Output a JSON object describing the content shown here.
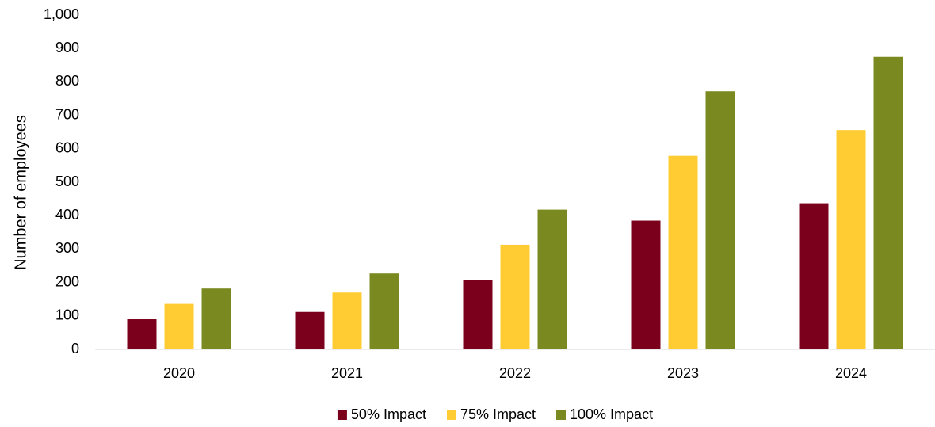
{
  "chart_data": {
    "type": "bar",
    "title": "",
    "xlabel": "",
    "ylabel": "Number of employees",
    "categories": [
      "2020",
      "2021",
      "2022",
      "2023",
      "2024"
    ],
    "series": [
      {
        "name": "50% Impact",
        "color": "#7B001C",
        "values": [
          90,
          112,
          208,
          385,
          437
        ]
      },
      {
        "name": "75% Impact",
        "color": "#FFCC33",
        "values": [
          136,
          170,
          313,
          579,
          656
        ]
      },
      {
        "name": "100% Impact",
        "color": "#7A8A20",
        "values": [
          182,
          227,
          418,
          772,
          875
        ]
      }
    ],
    "ylim": [
      0,
      1000
    ],
    "yticks": [
      0,
      100,
      200,
      300,
      400,
      500,
      600,
      700,
      800,
      900,
      1000
    ],
    "ytick_labels": [
      "0",
      "100",
      "200",
      "300",
      "400",
      "500",
      "600",
      "700",
      "800",
      "900",
      "1,000"
    ],
    "grid": false,
    "legend_position": "bottom"
  }
}
